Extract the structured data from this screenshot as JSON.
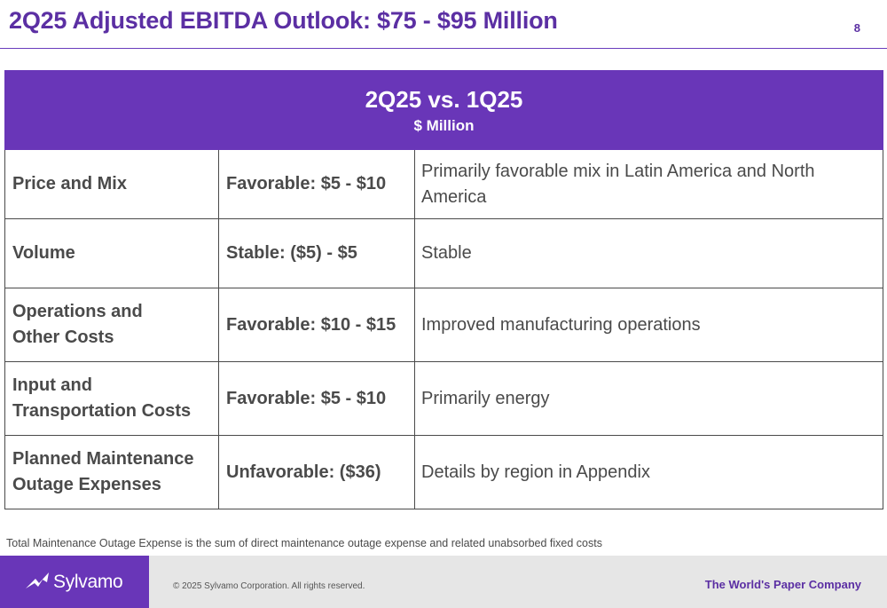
{
  "slide": {
    "title": "2Q25 Adjusted EBITDA Outlook: $75 - $95 Million",
    "page_number": "8"
  },
  "table": {
    "header_title": "2Q25 vs. 1Q25",
    "header_subtitle": "$ Million",
    "rows": [
      {
        "factor_line1": "Price and Mix",
        "factor_line2": "",
        "impact": "Favorable: $5 - $10",
        "detail": "Primarily favorable mix in Latin America and North America"
      },
      {
        "factor_line1": "Volume",
        "factor_line2": "",
        "impact": "Stable: ($5) - $5",
        "detail": "Stable"
      },
      {
        "factor_line1": "Operations and",
        "factor_line2": "Other Costs",
        "impact": "Favorable: $10 - $15",
        "detail": "Improved manufacturing operations"
      },
      {
        "factor_line1": "Input and",
        "factor_line2": "Transportation Costs",
        "impact": "Favorable: $5 - $10",
        "detail": "Primarily energy"
      },
      {
        "factor_line1": "Planned Maintenance",
        "factor_line2": "Outage Expenses",
        "impact": "Unfavorable: ($36)",
        "detail": "Details by region in Appendix"
      }
    ]
  },
  "footnote": "Total Maintenance Outage Expense is the sum of direct maintenance outage expense and related unabsorbed fixed costs",
  "footer": {
    "logo_text": "Sylvamo",
    "logo_icon": "leaf-arrow-icon",
    "copyright": "© 2025 Sylvamo Corporation. All rights reserved.",
    "tagline": "The World's Paper Company"
  },
  "colors": {
    "brand_purple": "#6936b8",
    "title_purple": "#5b2fa3",
    "text_gray": "#4a4a4a",
    "footer_gray": "#e6e6e6"
  }
}
